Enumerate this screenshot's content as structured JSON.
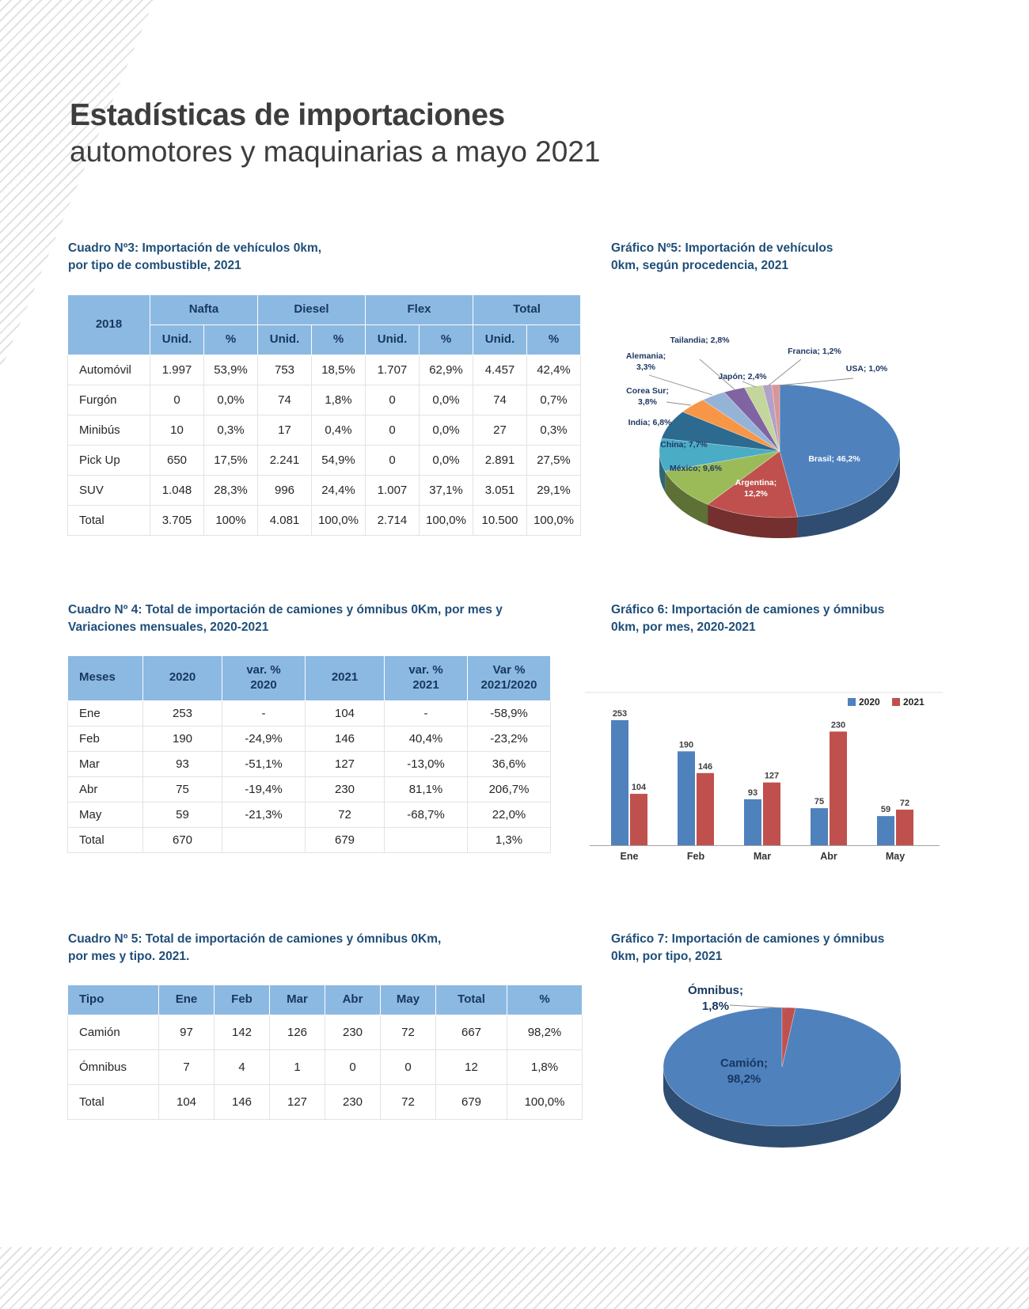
{
  "page": {
    "title_bold": "Estadísticas de importaciones",
    "title_light": "automotores y maquinarias a mayo 2021"
  },
  "cuadro3": {
    "title": "Cuadro Nº3: Importación de vehículos 0km,\npor tipo de combustible, 2021",
    "corner": "2018",
    "groups": [
      "Nafta",
      "Diesel",
      "Flex",
      "Total"
    ],
    "subheaders": [
      "Unid.",
      "%",
      "Unid.",
      "%",
      "Unid.",
      "%",
      "Unid.",
      "%"
    ],
    "rows": [
      [
        "Automóvil",
        "1.997",
        "53,9%",
        "753",
        "18,5%",
        "1.707",
        "62,9%",
        "4.457",
        "42,4%"
      ],
      [
        "Furgón",
        "0",
        "0,0%",
        "74",
        "1,8%",
        "0",
        "0,0%",
        "74",
        "0,7%"
      ],
      [
        "Minibús",
        "10",
        "0,3%",
        "17",
        "0,4%",
        "0",
        "0,0%",
        "27",
        "0,3%"
      ],
      [
        "Pick Up",
        "650",
        "17,5%",
        "2.241",
        "54,9%",
        "0",
        "0,0%",
        "2.891",
        "27,5%"
      ],
      [
        "SUV",
        "1.048",
        "28,3%",
        "996",
        "24,4%",
        "1.007",
        "37,1%",
        "3.051",
        "29,1%"
      ],
      [
        "Total",
        "3.705",
        "100%",
        "4.081",
        "100,0%",
        "2.714",
        "100,0%",
        "10.500",
        "100,0%"
      ]
    ]
  },
  "grafico5": {
    "title": "Gráfico Nº5: Importación de vehículos\n0km, según procedencia, 2021"
  },
  "cuadro4": {
    "title": "Cuadro Nº 4: Total de importación de camiones y ómnibus 0Km, por mes y\nVariaciones mensuales, 2020-2021",
    "headers": [
      "Meses",
      "2020",
      "var. %\n2020",
      "2021",
      "var. %\n2021",
      "Var %\n2021/2020"
    ],
    "rows": [
      [
        "Ene",
        "253",
        "-",
        "104",
        "-",
        "-58,9%"
      ],
      [
        "Feb",
        "190",
        "-24,9%",
        "146",
        "40,4%",
        "-23,2%"
      ],
      [
        "Mar",
        "93",
        "-51,1%",
        "127",
        "-13,0%",
        "36,6%"
      ],
      [
        "Abr",
        "75",
        "-19,4%",
        "230",
        "81,1%",
        "206,7%"
      ],
      [
        "May",
        "59",
        "-21,3%",
        "72",
        "-68,7%",
        "22,0%"
      ],
      [
        "Total",
        "670",
        "",
        "679",
        "",
        "1,3%"
      ]
    ]
  },
  "grafico6": {
    "title": "Gráfico 6: Importación de camiones y ómnibus\n0km, por mes, 2020-2021"
  },
  "cuadro5": {
    "title": "Cuadro Nº 5: Total de importación de camiones y ómnibus 0Km,\npor mes y tipo. 2021.",
    "headers": [
      "Tipo",
      "Ene",
      "Feb",
      "Mar",
      "Abr",
      "May",
      "Total",
      "%"
    ],
    "rows": [
      [
        "Camión",
        "97",
        "142",
        "126",
        "230",
        "72",
        "667",
        "98,2%"
      ],
      [
        "Ómnibus",
        "7",
        "4",
        "1",
        "0",
        "0",
        "12",
        "1,8%"
      ],
      [
        "Total",
        "104",
        "146",
        "127",
        "230",
        "72",
        "679",
        "100,0%"
      ]
    ]
  },
  "grafico7": {
    "title": "Gráfico 7: Importación de camiones y ómnibus\n0km, por tipo, 2021"
  },
  "chart_data": [
    {
      "type": "pie",
      "title": "Importación de vehículos 0km, según procedencia, 2021",
      "labels": [
        "Brasil",
        "Argentina",
        "México",
        "China",
        "India",
        "Corea Sur",
        "Alemania",
        "Tailandia",
        "Japón",
        "Francia",
        "USA"
      ],
      "values": [
        46.2,
        12.2,
        9.6,
        7.7,
        6.8,
        3.8,
        3.3,
        2.8,
        2.4,
        1.2,
        1.0
      ],
      "display": [
        "Brasil; 46,2%",
        "Argentina; 12,2%",
        "México; 9,6%",
        "China; 7,7%",
        "India; 6,8%",
        "Corea Sur; 3,8%",
        "Alemania; 3,3%",
        "Tailandia; 2,8%",
        "Japón; 2,4%",
        "Francia; 1,2%",
        "USA; 1,0%"
      ],
      "colors": [
        "#4F81BD",
        "#C0504D",
        "#9BBB59",
        "#4BACC6",
        "#2C6A8F",
        "#F79646",
        "#95B3D7",
        "#8064A2",
        "#C3D69B",
        "#B2A1C7",
        "#D99694"
      ],
      "unit": "%"
    },
    {
      "type": "bar",
      "title": "Importación de camiones y ómnibus 0km, por mes, 2020-2021",
      "categories": [
        "Ene",
        "Feb",
        "Mar",
        "Abr",
        "May"
      ],
      "series": [
        {
          "name": "2020",
          "color": "#4F81BD",
          "values": [
            253,
            190,
            93,
            75,
            59
          ]
        },
        {
          "name": "2021",
          "color": "#C0504D",
          "values": [
            104,
            146,
            127,
            230,
            72
          ]
        }
      ],
      "ylim": [
        0,
        260
      ],
      "legend_position": "top-right",
      "grid": false
    },
    {
      "type": "pie",
      "title": "Importación de camiones y ómnibus 0km, por tipo, 2021",
      "labels": [
        "Camión",
        "Ómnibus"
      ],
      "values": [
        98.2,
        1.8
      ],
      "display": [
        "Camión;\n98,2%",
        "Ómnibus;\n1,8%"
      ],
      "colors": [
        "#4F81BD",
        "#C0504D"
      ],
      "unit": "%"
    }
  ]
}
